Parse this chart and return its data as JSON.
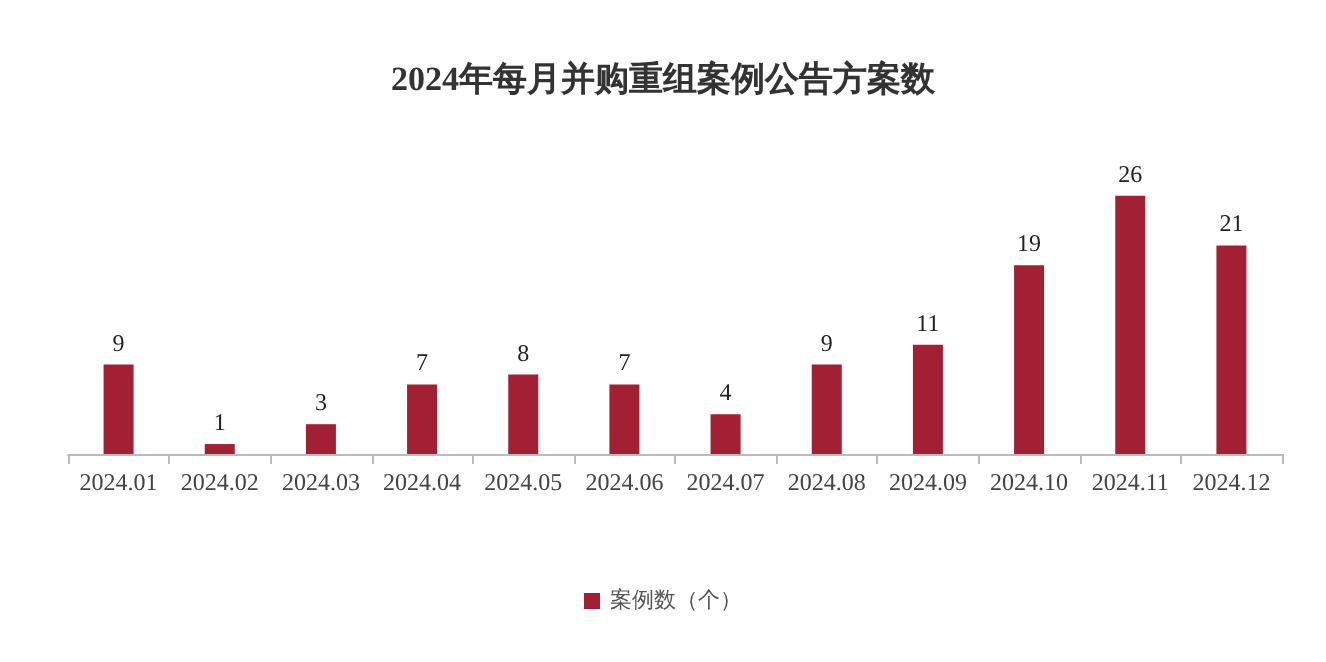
{
  "chart_data": {
    "type": "bar",
    "title": "2024年每月并购重组案例公告方案数",
    "categories": [
      "2024.01",
      "2024.02",
      "2024.03",
      "2024.04",
      "2024.05",
      "2024.06",
      "2024.07",
      "2024.08",
      "2024.09",
      "2024.10",
      "2024.11",
      "2024.12"
    ],
    "series": [
      {
        "name": "案例数（个）",
        "color": "#a31f34",
        "values": [
          9,
          1,
          3,
          7,
          8,
          7,
          4,
          9,
          11,
          19,
          26,
          21
        ]
      }
    ],
    "data_labels": true,
    "legend": "bottom"
  }
}
